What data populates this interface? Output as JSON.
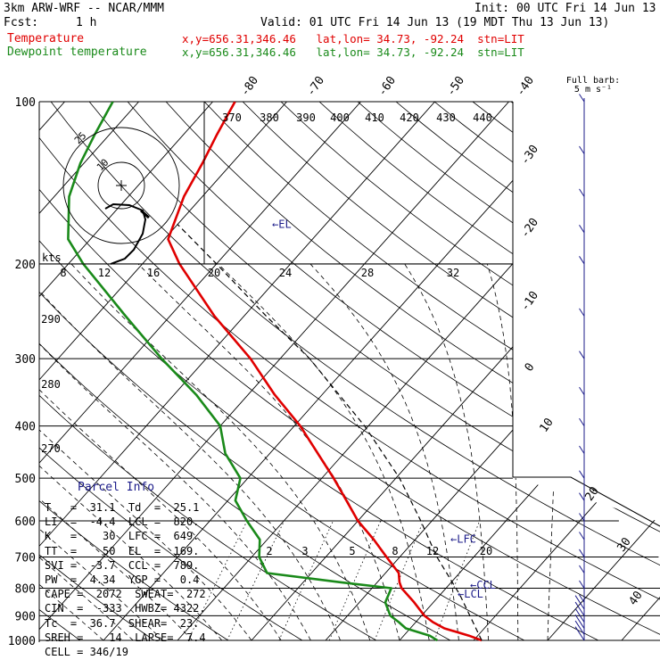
{
  "header": {
    "model": "3km ARW-WRF -- NCAR/MMM",
    "init": "Init: 00 UTC Fri 14 Jun 13",
    "fcst_label": "Fcst:",
    "fcst_value": "1 h",
    "valid": "Valid: 01 UTC Fri 14 Jun 13 (19 MDT Thu 13 Jun 13)",
    "temp_label": "Temperature",
    "temp_loc": "x,y=656.31,346.46   lat,lon= 34.73, -92.24  stn=LIT",
    "dew_label": "Dewpoint temperature",
    "dew_loc": "x,y=656.31,346.46   lat,lon= 34.73, -92.24  stn=LIT"
  },
  "barb_legend": {
    "line1": "Full barb:",
    "line2": "5 m s⁻¹"
  },
  "colors": {
    "temperature": "#e00000",
    "dewpoint": "#1a8a1a",
    "barbs": "#1c1c8a",
    "parcel": "#1c1c8a"
  },
  "pressure_labels": [
    "100",
    "200",
    "300",
    "400",
    "500",
    "600",
    "700",
    "800",
    "900",
    "1000"
  ],
  "isotherm_labels": [
    "-80",
    "-70",
    "-60",
    "-50",
    "-40",
    "-30",
    "-20",
    "-10",
    "0",
    "10",
    "20",
    "30",
    "40"
  ],
  "theta_labels": [
    "370",
    "380",
    "390",
    "400",
    "410",
    "420",
    "430",
    "440",
    "290",
    "280",
    "270"
  ],
  "mixing_ratio_labels": [
    "2",
    "3",
    "5",
    "8",
    "12",
    "20"
  ],
  "level_markers": [
    "EL",
    "LFC",
    "CCL",
    "LCL"
  ],
  "hodograph": {
    "ring_labels": [
      "25",
      "10"
    ],
    "kts_label": "kts",
    "speed_labels": [
      "8",
      "12",
      "16",
      "20",
      "24",
      "28",
      "32"
    ]
  },
  "parcel_info": {
    "title": "Parcel Info",
    "rows": [
      "T   =  31.1  Td  =  25.1",
      "LI  =  -4.4  LCL =  820.",
      "K   =    30  LFC =  649.",
      "TT  =    50  EL  =  169.",
      "SVI =  -3.7  CCL =  789.",
      "PW  =  4.34  YGP =   0.4",
      "CAPE =  2072  SWEAT=  272",
      "CIN  =  -333  HWBZ= 4322.",
      "Tc  =  36.7  SHEAR=  23.",
      "SREH =    14  LAPSE=  7.4",
      "CELL = 346/19"
    ]
  },
  "chart_data": {
    "type": "line",
    "title": "",
    "xlabel": "",
    "ylabel": "",
    "y_scale": "log",
    "ylim": [
      1000,
      100
    ],
    "series": [
      {
        "name": "Temperature",
        "color": "#e00000",
        "pressure_hPa": [
          1000,
          980,
          950,
          925,
          900,
          850,
          800,
          780,
          750,
          700,
          650,
          600,
          550,
          500,
          450,
          400,
          350,
          300,
          250,
          200,
          180,
          150,
          130,
          115,
          100
        ],
        "temp_C": [
          31.1,
          28.8,
          24.6,
          22.3,
          20.4,
          17.4,
          14.0,
          13.0,
          11.8,
          8.2,
          4.4,
          0.0,
          -4.0,
          -8.4,
          -13.5,
          -19.2,
          -26.4,
          -34.0,
          -44.0,
          -55.0,
          -59.5,
          -62.5,
          -64.0,
          -65.5,
          -67.0
        ]
      },
      {
        "name": "Dewpoint temperature",
        "color": "#1a8a1a",
        "pressure_hPa": [
          1000,
          980,
          950,
          925,
          900,
          850,
          800,
          780,
          750,
          700,
          650,
          600,
          550,
          500,
          450,
          400,
          350,
          300,
          250,
          200,
          180,
          150,
          130,
          115,
          100
        ],
        "temp_C": [
          25.1,
          23.5,
          19.4,
          17.7,
          15.8,
          13.5,
          12.6,
          5.0,
          -6.0,
          -9.0,
          -11.0,
          -15.0,
          -19.0,
          -21.0,
          -26.0,
          -30.0,
          -37.0,
          -46.0,
          -56.0,
          -68.0,
          -73.0,
          -78.0,
          -80.5,
          -82.0,
          -83.5
        ]
      }
    ],
    "parcel_ascent": {
      "pressure_hPa": [
        1000,
        820,
        700,
        600,
        500,
        400,
        300,
        250,
        200,
        169
      ],
      "temp_C": [
        31.1,
        22.5,
        15.0,
        8.5,
        0.5,
        -10.5,
        -26.0,
        -37.0,
        -50.0,
        -60.0
      ]
    },
    "wind_barbs_pressure_hPa": [
      1000,
      975,
      950,
      925,
      900,
      875,
      850,
      800,
      750,
      700,
      650,
      600,
      550,
      500,
      450,
      400,
      350,
      300,
      250,
      200,
      175,
      150,
      125,
      100
    ],
    "levels_hPa": {
      "EL": 169,
      "LFC": 649,
      "CCL": 789,
      "LCL": 820
    }
  }
}
